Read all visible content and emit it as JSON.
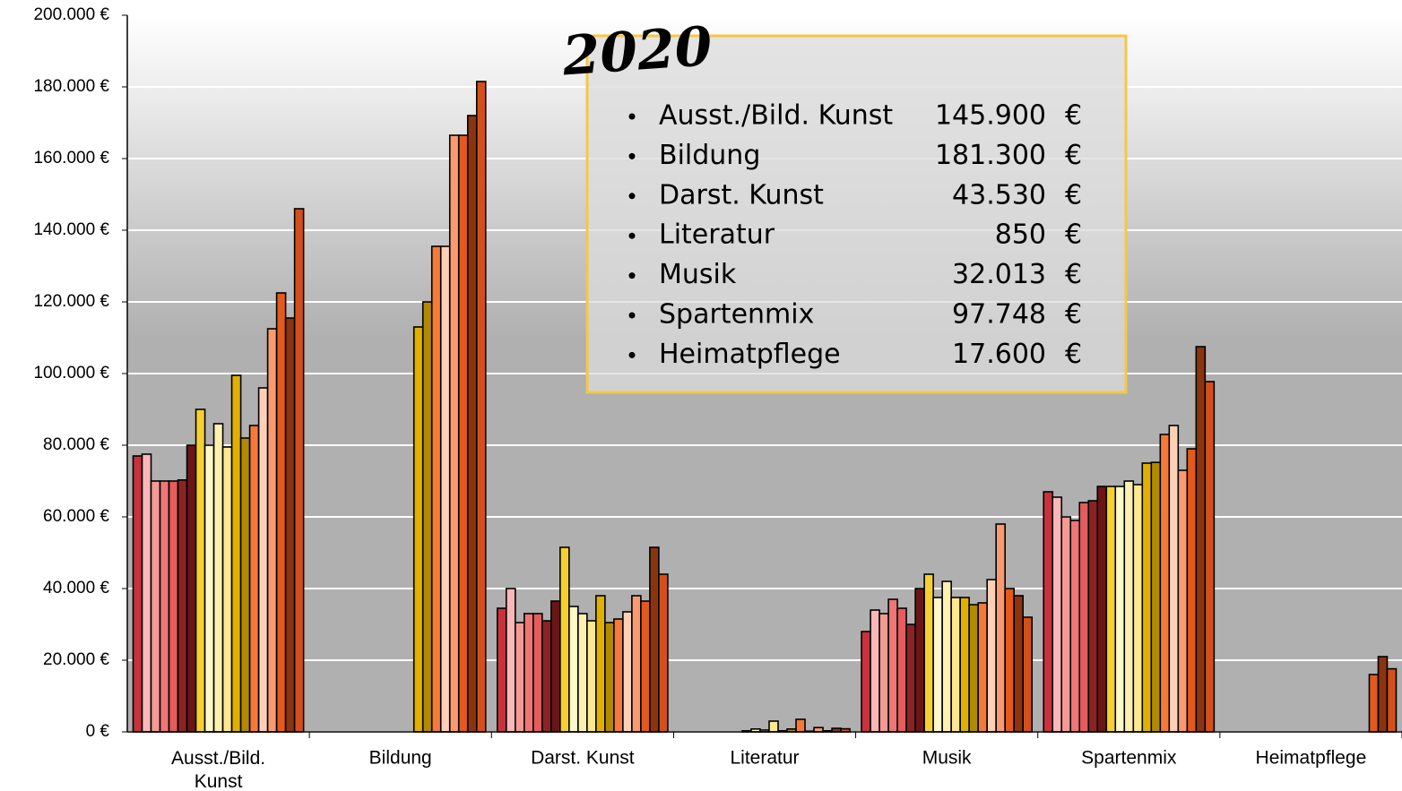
{
  "chart_data": {
    "type": "bar",
    "categories": [
      "Ausst./Bild. Kunst",
      "Bildung",
      "Darst. Kunst",
      "Literatur",
      "Musik",
      "Spartenmix",
      "Heimatpflege"
    ],
    "ylim": [
      0,
      200000
    ],
    "yticks": [
      {
        "value": 0,
        "label": "0 €"
      },
      {
        "value": 20000,
        "label": "20.000 €"
      },
      {
        "value": 40000,
        "label": "40.000 €"
      },
      {
        "value": 60000,
        "label": "60.000 €"
      },
      {
        "value": 80000,
        "label": "80.000 €"
      },
      {
        "value": 100000,
        "label": "100.000 €"
      },
      {
        "value": 120000,
        "label": "120.000 €"
      },
      {
        "value": 140000,
        "label": "140.000 €"
      },
      {
        "value": 160000,
        "label": "160.000 €"
      },
      {
        "value": 180000,
        "label": "180.000 €"
      },
      {
        "value": 200000,
        "label": "200.000 €"
      }
    ],
    "grid": true,
    "series": [
      {
        "color": "#c8323c",
        "values": [
          77000,
          null,
          34500,
          null,
          28000,
          67000,
          null
        ]
      },
      {
        "color": "#f9b8b8",
        "values": [
          77500,
          null,
          40000,
          null,
          34000,
          65500,
          null
        ]
      },
      {
        "color": "#f49a95",
        "values": [
          70000,
          null,
          30500,
          null,
          33000,
          60000,
          null
        ]
      },
      {
        "color": "#ee7676",
        "values": [
          70000,
          null,
          33000,
          null,
          37000,
          59000,
          null
        ]
      },
      {
        "color": "#e45c5c",
        "values": [
          70000,
          null,
          33000,
          null,
          34500,
          64000,
          null
        ]
      },
      {
        "color": "#8a2424",
        "values": [
          70300,
          null,
          31000,
          null,
          30000,
          64500,
          null
        ]
      },
      {
        "color": "#6a1616",
        "values": [
          80000,
          null,
          36500,
          null,
          40000,
          68500,
          null
        ]
      },
      {
        "color": "#f5d030",
        "values": [
          90000,
          null,
          51500,
          300,
          44000,
          68500,
          null
        ]
      },
      {
        "color": "#fff8c8",
        "values": [
          80000,
          null,
          35000,
          800,
          37500,
          68500,
          null
        ]
      },
      {
        "color": "#fff0b0",
        "values": [
          86000,
          null,
          33000,
          500,
          42000,
          70000,
          null
        ]
      },
      {
        "color": "#fbe890",
        "values": [
          79500,
          null,
          31000,
          3000,
          37500,
          69000,
          null
        ]
      },
      {
        "color": "#e0b000",
        "values": [
          99500,
          113000,
          38000,
          300,
          37500,
          75000,
          null
        ]
      },
      {
        "color": "#b08a00",
        "values": [
          82000,
          120000,
          30500,
          800,
          35500,
          75200,
          null
        ]
      },
      {
        "color": "#f57a3a",
        "values": [
          85500,
          135500,
          31500,
          3500,
          36000,
          83000,
          null
        ]
      },
      {
        "color": "#fdd0b8",
        "values": [
          96000,
          135500,
          33500,
          200,
          42500,
          85500,
          null
        ]
      },
      {
        "color": "#fa9a70",
        "values": [
          112500,
          166500,
          38000,
          1200,
          58000,
          73000,
          null
        ]
      },
      {
        "color": "#e25a1c",
        "values": [
          122500,
          166500,
          36500,
          300,
          40000,
          79000,
          16000
        ]
      },
      {
        "color": "#8a3410",
        "values": [
          115500,
          172000,
          51500,
          1000,
          38000,
          107500,
          21000
        ]
      },
      {
        "color": "#d4501a",
        "values": [
          146000,
          181500,
          44000,
          850,
          32000,
          97748,
          17600
        ]
      }
    ],
    "annotation": {
      "title": "2020",
      "unit": "€",
      "items": [
        {
          "label": "Ausst./Bild. Kunst",
          "amount": "145.900"
        },
        {
          "label": "Bildung",
          "amount": "181.300"
        },
        {
          "label": "Darst. Kunst",
          "amount": "43.530"
        },
        {
          "label": "Literatur",
          "amount": "850"
        },
        {
          "label": "Musik",
          "amount": "32.013"
        },
        {
          "label": "Spartenmix",
          "amount": "97.748"
        },
        {
          "label": "Heimatpflege",
          "amount": "17.600"
        }
      ]
    }
  }
}
